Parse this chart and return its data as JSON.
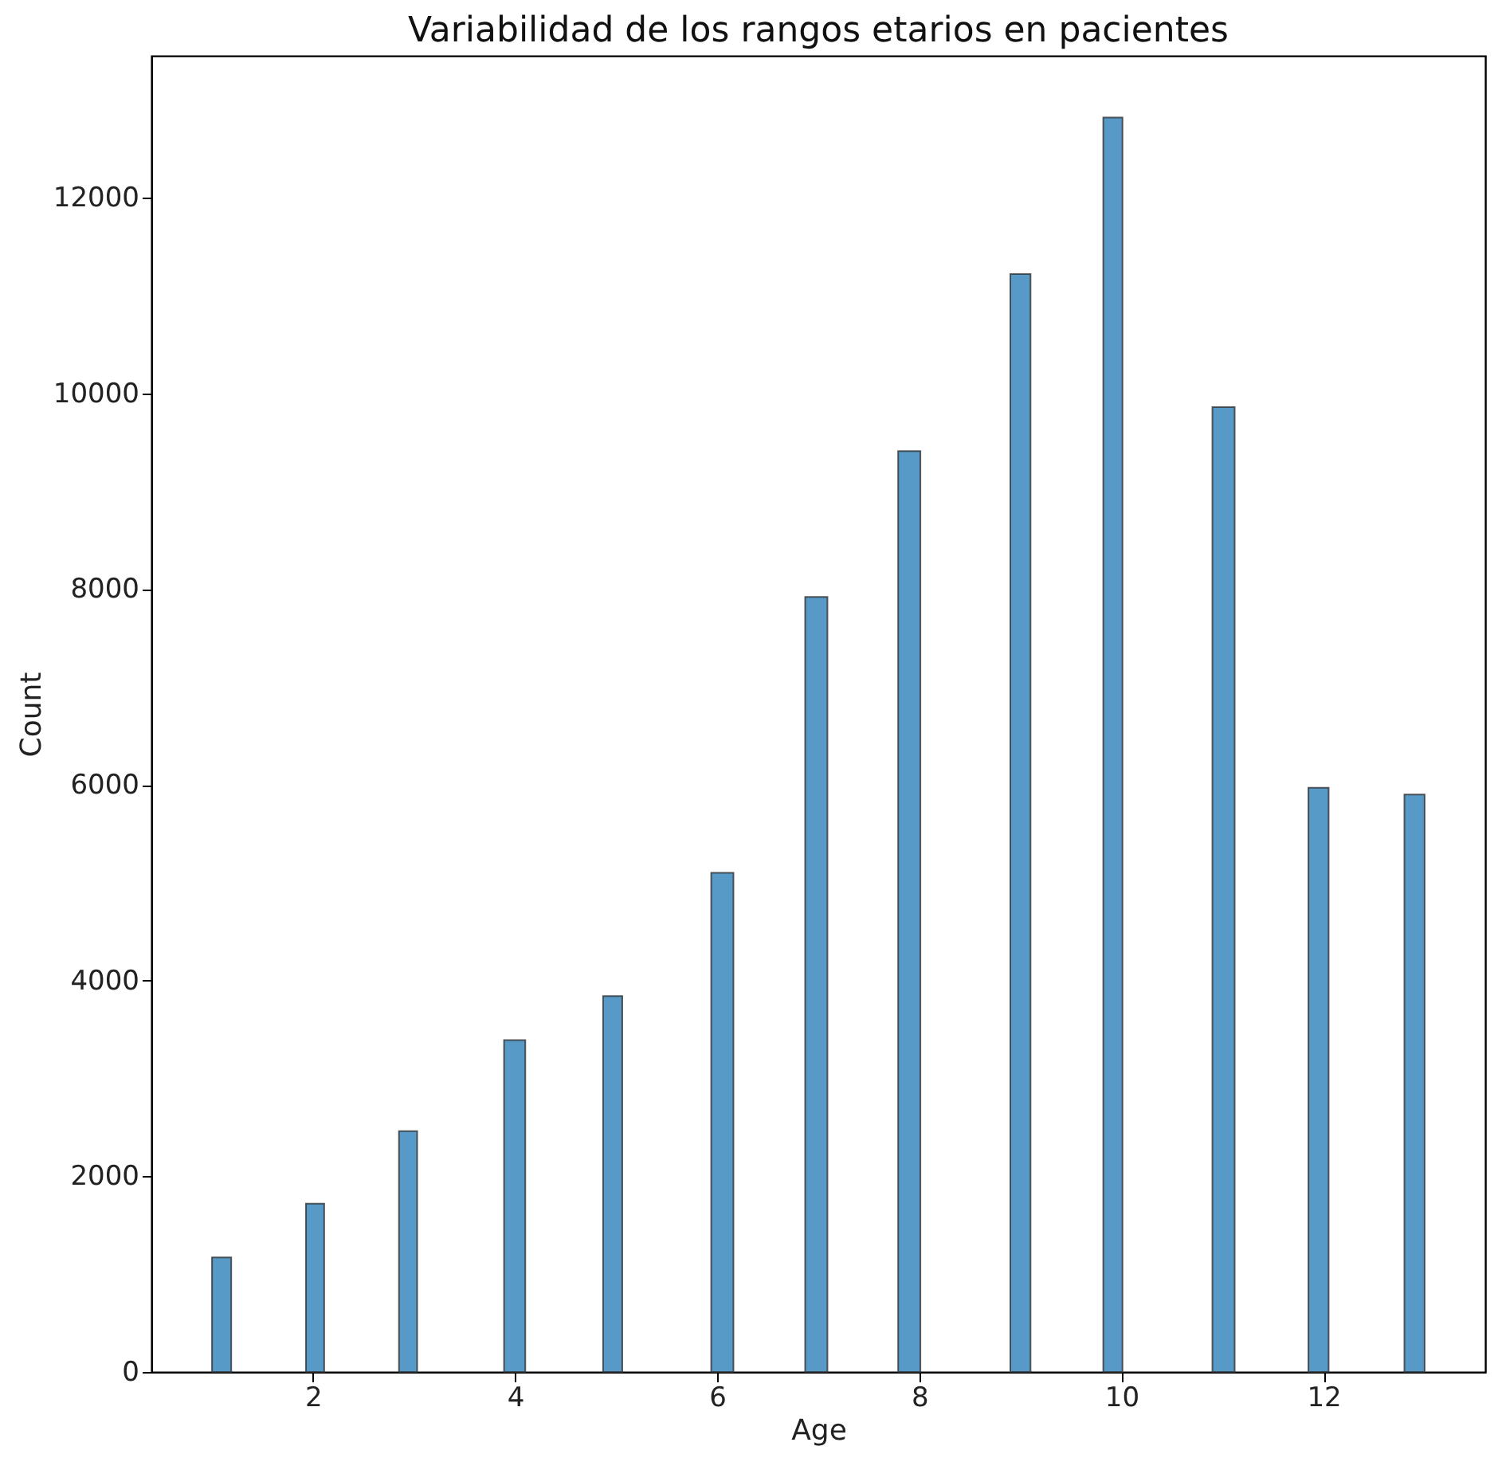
{
  "chart_data": {
    "type": "histogram",
    "title": "Variabilidad de los rangos etarios en pacientes",
    "xlabel": "Age",
    "ylabel": "Count",
    "bins": [
      1.0,
      1.19,
      1.93,
      2.11,
      2.85,
      3.03,
      3.89,
      4.1,
      4.87,
      5.06,
      5.94,
      6.16,
      6.87,
      7.09,
      7.79,
      8.01,
      8.9,
      9.1,
      9.82,
      10.01,
      10.9,
      11.12,
      11.85,
      12.05,
      12.8,
      13.0
    ],
    "values": [
      1170,
      0,
      1720,
      0,
      2460,
      0,
      3390,
      0,
      3840,
      0,
      5100,
      0,
      7920,
      0,
      9410,
      0,
      11220,
      0,
      12820,
      0,
      9860,
      0,
      5970,
      0,
      5900
    ],
    "color": "#5799c7",
    "xlim": [
      0.4,
      13.6
    ],
    "xticks": [
      2,
      4,
      6,
      8,
      10,
      12
    ],
    "ylim": [
      0,
      13450
    ],
    "yticks": [
      0,
      2000,
      4000,
      6000,
      8000,
      10000,
      12000
    ],
    "grid": false
  }
}
